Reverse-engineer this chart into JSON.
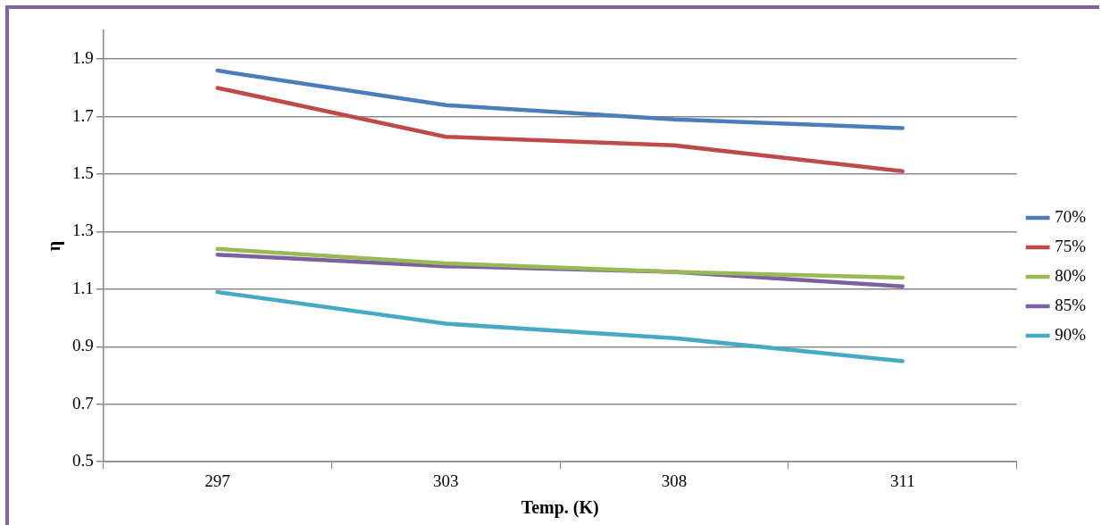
{
  "chart_data": {
    "type": "line",
    "xlabel": "Temp. (K)",
    "ylabel": "η",
    "categories": [
      "297",
      "303",
      "308",
      "311"
    ],
    "series": [
      {
        "name": "70%",
        "color": "#4a7ebb",
        "values": [
          1.86,
          1.74,
          1.69,
          1.66
        ]
      },
      {
        "name": "75%",
        "color": "#be4b48",
        "values": [
          1.8,
          1.63,
          1.6,
          1.51
        ]
      },
      {
        "name": "80%",
        "color": "#98b954",
        "values": [
          1.24,
          1.19,
          1.16,
          1.14
        ]
      },
      {
        "name": "85%",
        "color": "#7d60a0",
        "values": [
          1.22,
          1.18,
          1.16,
          1.11
        ]
      },
      {
        "name": "90%",
        "color": "#46aac5",
        "values": [
          1.09,
          0.98,
          0.93,
          0.85
        ]
      }
    ],
    "ylim": [
      0.5,
      2.0
    ],
    "yticks": [
      0.5,
      0.7,
      0.9,
      1.1,
      1.3,
      1.5,
      1.7,
      1.9
    ],
    "grid": "y",
    "legend": "right",
    "marker": "none",
    "line_style": "solid"
  }
}
